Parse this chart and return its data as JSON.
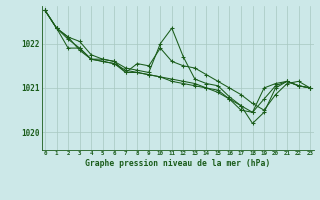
{
  "title": "Graphe pression niveau de la mer (hPa)",
  "bg_color": "#cce8e8",
  "grid_color": "#a8c8c0",
  "line_color": "#1a5c1a",
  "x_ticks": [
    0,
    1,
    2,
    3,
    4,
    5,
    6,
    7,
    8,
    9,
    10,
    11,
    12,
    13,
    14,
    15,
    16,
    17,
    18,
    19,
    20,
    21,
    22,
    23
  ],
  "ylim": [
    1019.6,
    1022.85
  ],
  "yticks": [
    1020,
    1021,
    1022
  ],
  "series": [
    [
      1022.75,
      1022.35,
      1022.15,
      1021.85,
      1021.65,
      1021.6,
      1021.55,
      1021.4,
      1021.35,
      1021.3,
      1021.25,
      1021.2,
      1021.15,
      1021.1,
      1021.0,
      1020.9,
      1020.75,
      1020.6,
      1020.45,
      1021.0,
      1021.1,
      1021.15,
      1021.05,
      1021.0
    ],
    [
      1022.75,
      1022.35,
      1022.15,
      1022.05,
      1021.75,
      1021.65,
      1021.6,
      1021.45,
      1021.4,
      1021.35,
      1022.0,
      1022.35,
      1021.7,
      1021.2,
      1021.1,
      1021.05,
      1020.8,
      1020.6,
      1020.2,
      1020.45,
      1021.0,
      1021.15,
      1021.05,
      1021.0
    ],
    [
      1022.75,
      1022.35,
      1022.1,
      1021.9,
      1021.65,
      1021.65,
      1021.6,
      1021.35,
      1021.55,
      1021.5,
      1021.9,
      1021.6,
      1021.5,
      1021.45,
      1021.3,
      1021.15,
      1021.0,
      1020.85,
      1020.65,
      1020.5,
      1020.85,
      1021.1,
      1021.15,
      1021.0
    ],
    [
      1022.75,
      1022.35,
      1021.9,
      1021.9,
      1021.65,
      1021.6,
      1021.55,
      1021.35,
      1021.35,
      1021.3,
      1021.25,
      1021.15,
      1021.1,
      1021.05,
      1021.0,
      1020.95,
      1020.75,
      1020.5,
      1020.45,
      1020.75,
      1021.05,
      1021.15,
      1021.05,
      1021.0
    ]
  ]
}
